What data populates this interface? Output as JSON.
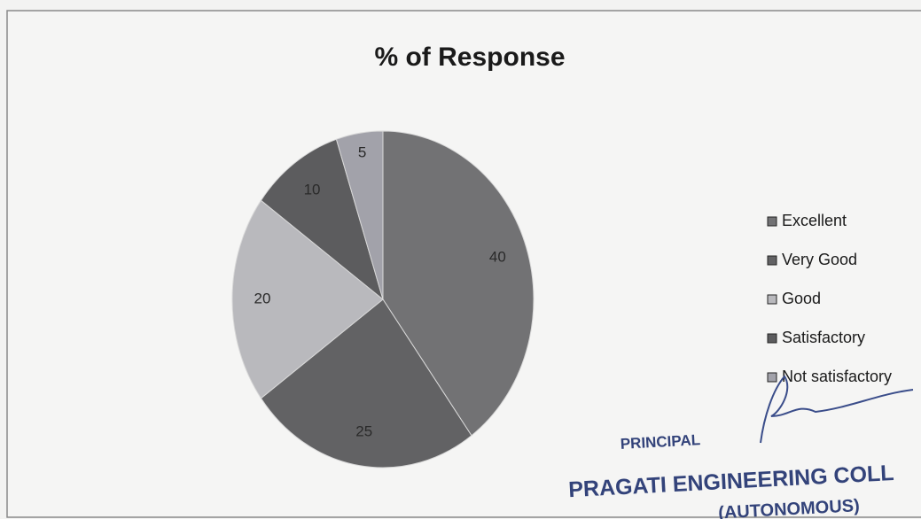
{
  "chart_data": {
    "type": "pie",
    "title": "% of Response",
    "categories": [
      "Excellent",
      "Very Good",
      "Good",
      "Satisfactory",
      "Not satisfactory"
    ],
    "values": [
      40,
      25,
      20,
      10,
      5
    ],
    "colors": [
      "#727274",
      "#626264",
      "#b9b9bd",
      "#5c5c5e",
      "#a2a2aa"
    ],
    "legend": "right",
    "annotations": [
      "PRINCIPAL",
      "PRAGATI ENGINEERING COLL",
      "(AUTONOMOUS)"
    ]
  }
}
